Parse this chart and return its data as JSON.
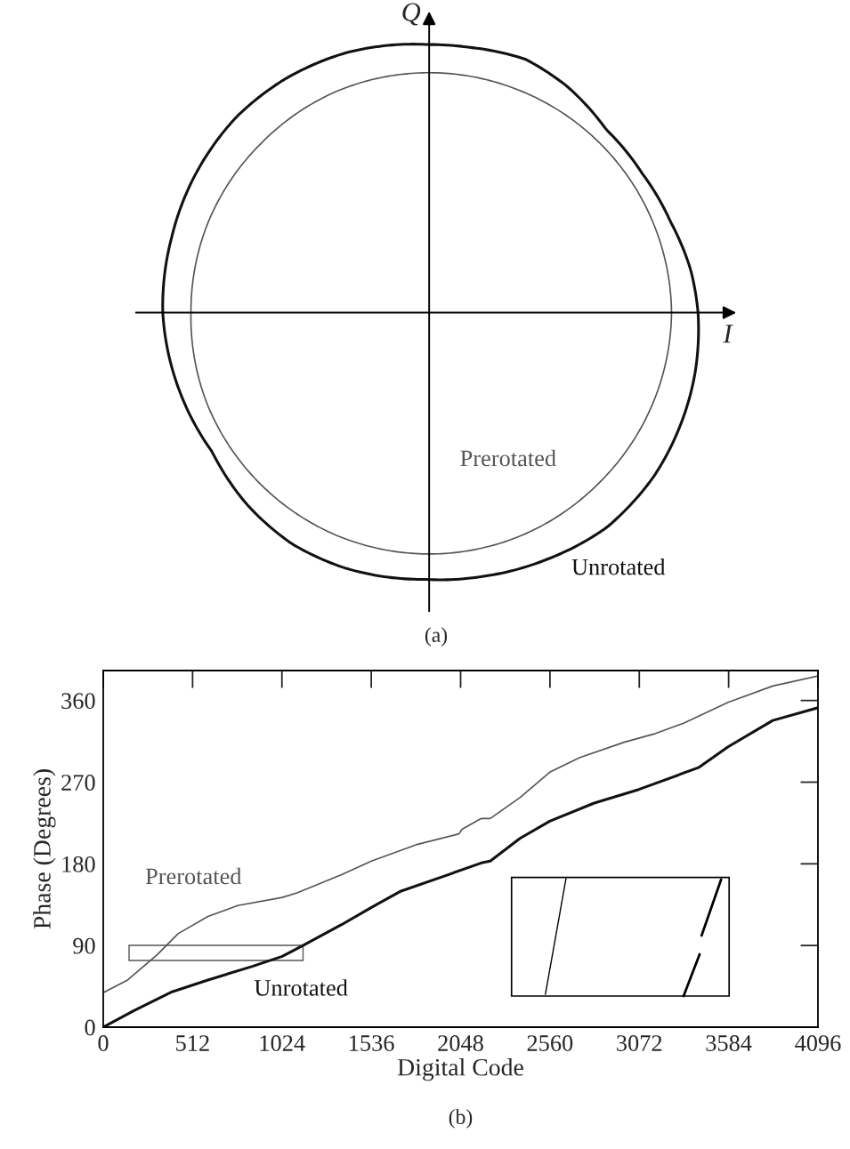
{
  "chart_data": [
    {
      "type": "other",
      "xlabel": "I",
      "ylabel": "Q",
      "annotations": [
        "Prerotated",
        "Unrotated",
        "(a)"
      ]
    },
    {
      "type": "line",
      "xlabel": "Digital Code",
      "ylabel": "Phase (Degrees)",
      "annotations": [
        "(b)"
      ],
      "xlim": [
        0,
        4096
      ],
      "xticks": [
        0,
        512,
        1024,
        1536,
        2048,
        2560,
        3072,
        3584,
        4096
      ],
      "ylim": [
        0,
        393
      ],
      "yticks": [
        0,
        90,
        180,
        270,
        360
      ],
      "series": [
        {
          "name": "Prerotated",
          "color": "#555555",
          "x": [
            0,
            140,
            310,
            429,
            600,
            770,
            1026,
            1111,
            1366,
            1537,
            1792,
            2039,
            2056,
            2167,
            2218,
            2388,
            2559,
            2729,
            2985,
            3155,
            3326,
            3581,
            3837,
            4096
          ],
          "values": [
            38,
            52,
            80,
            103,
            122,
            134,
            143,
            148,
            168,
            183,
            201,
            213,
            218,
            230,
            230,
            253,
            281,
            297,
            314,
            323,
            335,
            358,
            376,
            387
          ]
        },
        {
          "name": "Unrotated",
          "color": "#111111",
          "x": [
            0,
            174,
            395,
            600,
            855,
            1026,
            1145,
            1366,
            1537,
            1707,
            1962,
            2167,
            2218,
            2388,
            2559,
            2814,
            3070,
            3411,
            3581,
            3837,
            4096
          ],
          "values": [
            0,
            18,
            39,
            52,
            67,
            78,
            90,
            113,
            132,
            150,
            167,
            181,
            183,
            208,
            227,
            247,
            262,
            286,
            309,
            338,
            352
          ]
        }
      ]
    }
  ]
}
